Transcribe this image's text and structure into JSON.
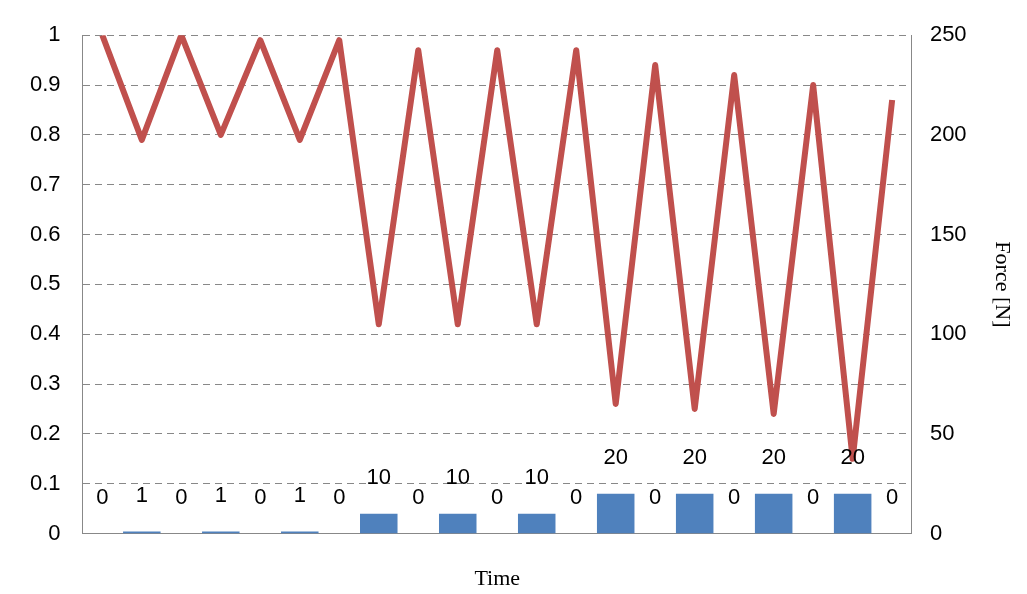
{
  "chart_data": {
    "type": "bar",
    "xlabel": "Time",
    "y2label": "Force [N]",
    "categories": [
      null,
      null,
      null,
      null,
      null,
      null,
      null,
      null,
      null,
      null,
      null,
      null,
      null,
      null,
      null,
      null,
      null,
      null,
      null,
      null,
      null
    ],
    "series": [
      {
        "axis": "y2",
        "color": "#4f81bd",
        "values": [
          0,
          1,
          0,
          1,
          0,
          1,
          0,
          10,
          0,
          10,
          0,
          10,
          0,
          20,
          0,
          20,
          0,
          20,
          0,
          20,
          0
        ],
        "value_labels": [
          "0",
          "1",
          "0",
          "1",
          "0",
          "1",
          "0",
          "10",
          "0",
          "10",
          "0",
          "10",
          "0",
          "20",
          "0",
          "20",
          "0",
          "20",
          "0",
          "20",
          "0"
        ]
      },
      {
        "type": "line",
        "color": "#c0504d",
        "values": [
          1.0,
          0.79,
          1.0,
          0.8,
          0.99,
          0.79,
          0.99,
          0.42,
          0.97,
          0.42,
          0.97,
          0.42,
          0.97,
          0.26,
          0.94,
          0.25,
          0.92,
          0.24,
          0.9,
          0.15,
          0.87
        ]
      }
    ],
    "ylim": [
      0,
      1
    ],
    "yticks": [
      0,
      0.1,
      0.2,
      0.3,
      0.4,
      0.5,
      0.6,
      0.7,
      0.8,
      0.9,
      1
    ],
    "y2lim": [
      0,
      250
    ],
    "y2ticks": [
      0,
      50,
      100,
      150,
      200,
      250
    ],
    "grid": "y",
    "legend": false,
    "marker": "none",
    "line_style": "solid"
  }
}
